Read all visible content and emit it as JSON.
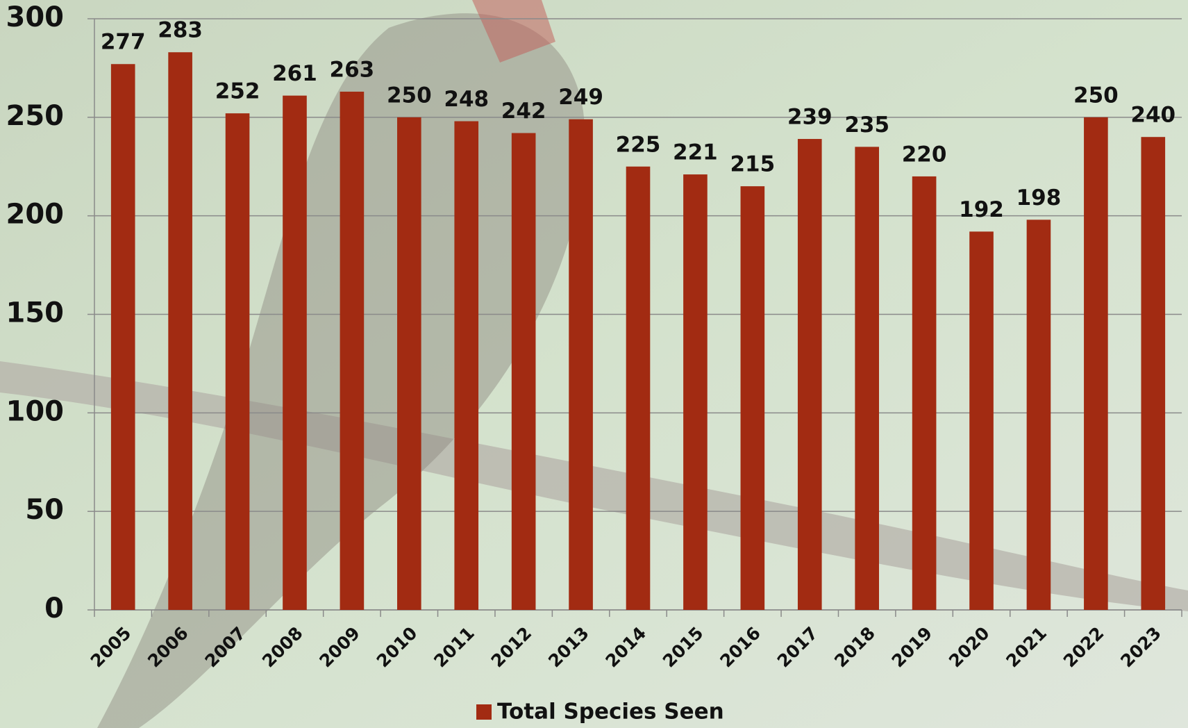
{
  "chart_data": {
    "type": "bar",
    "categories": [
      "2005",
      "2006",
      "2007",
      "2008",
      "2009",
      "2010",
      "2011",
      "2012",
      "2013",
      "2014",
      "2015",
      "2016",
      "2017",
      "2018",
      "2019",
      "2020",
      "2021",
      "2022",
      "2023"
    ],
    "series": [
      {
        "name": "Total Species Seen",
        "color": "#a22b12",
        "values": [
          277,
          283,
          252,
          261,
          263,
          250,
          248,
          242,
          249,
          225,
          221,
          215,
          239,
          235,
          220,
          192,
          198,
          250,
          240
        ]
      }
    ],
    "ylim": [
      0,
      300
    ],
    "yticks": [
      0,
      50,
      100,
      150,
      200,
      250,
      300
    ],
    "grid": true,
    "legend": "bottom"
  }
}
